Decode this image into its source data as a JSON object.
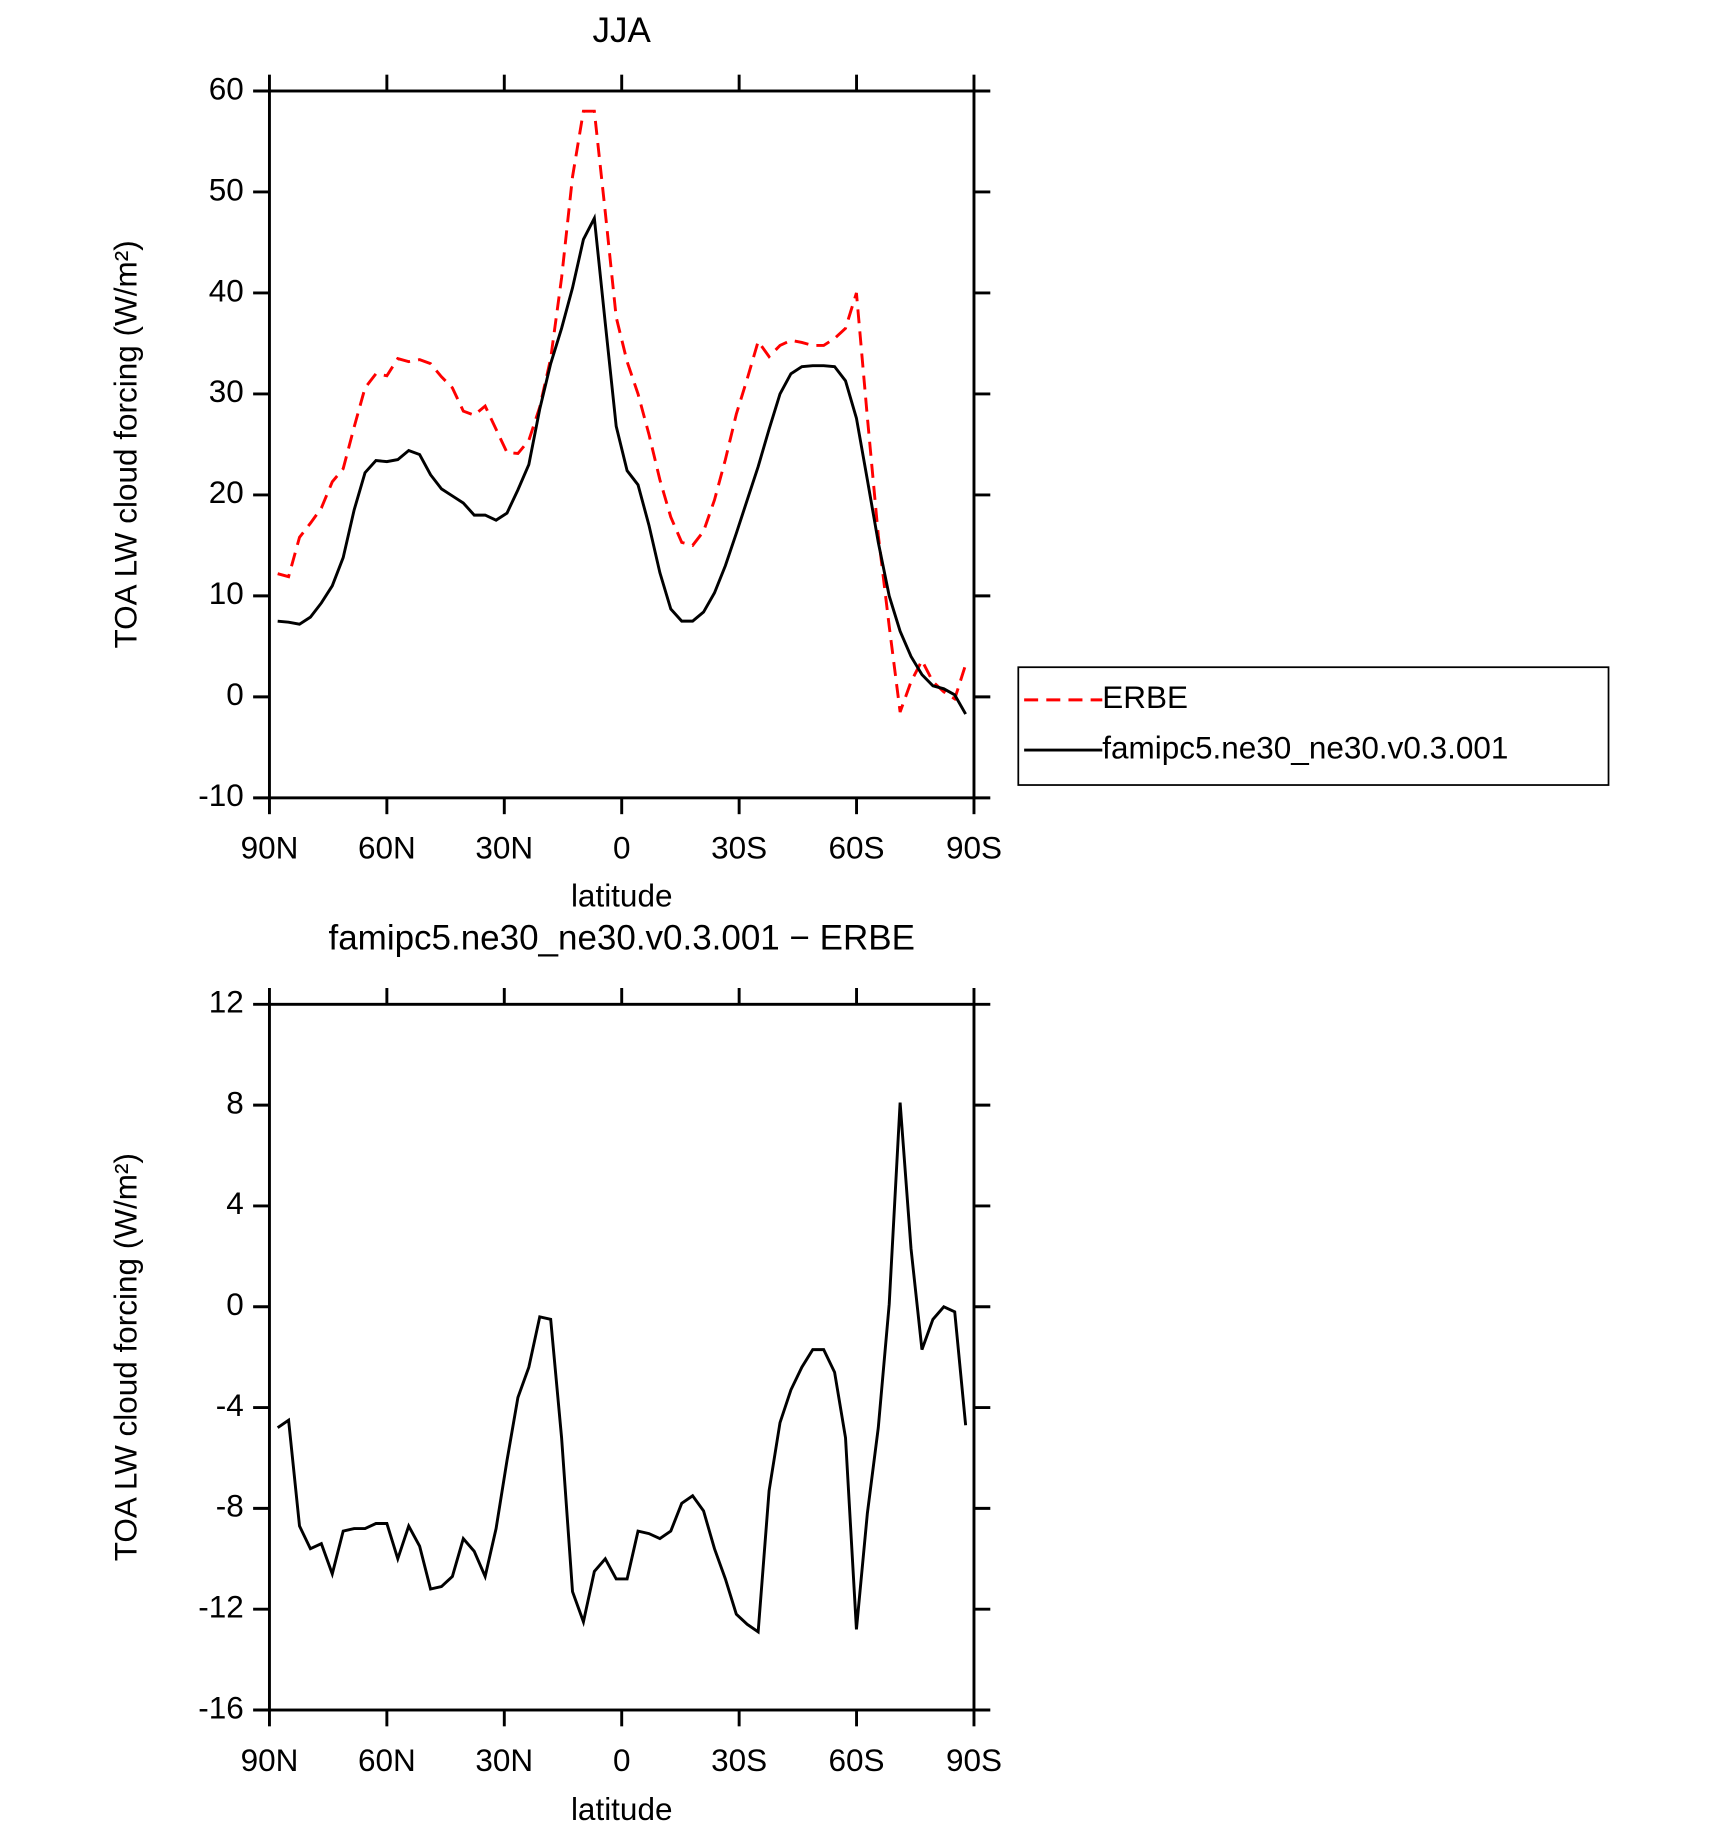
{
  "chart_data": [
    {
      "type": "line",
      "title": "JJA",
      "xlabel": "latitude",
      "ylabel": "TOA LW cloud forcing (W/m²)",
      "x": [
        87.9,
        85.11,
        82.32,
        79.53,
        76.74,
        73.95,
        71.16,
        68.37,
        65.58,
        62.79,
        60,
        57.21,
        54.42,
        51.63,
        48.84,
        46.05,
        43.26,
        40.47,
        37.68,
        34.89,
        32.1,
        29.31,
        26.52,
        23.73,
        20.94,
        18.15,
        15.36,
        12.57,
        9.78,
        6.99,
        4.2,
        1.41,
        -1.38,
        -4.17,
        -6.96,
        -9.75,
        -12.54,
        -15.33,
        -18.12,
        -20.91,
        -23.7,
        -26.49,
        -29.28,
        -32.07,
        -34.86,
        -37.65,
        -40.44,
        -43.23,
        -46.02,
        -48.81,
        -51.6,
        -54.39,
        -57.18,
        -59.97,
        -62.76,
        -65.55,
        -68.34,
        -71.13,
        -73.92,
        -76.71,
        -79.5,
        -82.29,
        -85.08,
        -87.87
      ],
      "series": [
        {
          "name": "ERBE",
          "color": "#ff0000",
          "dashed": true,
          "values": [
            12.2,
            11.9,
            15.8,
            17.2,
            18.7,
            21.3,
            22.6,
            26.7,
            30.6,
            32,
            31.8,
            33.5,
            33.2,
            33.4,
            33,
            31.7,
            30.6,
            28.3,
            27.9,
            28.8,
            26.5,
            24.2,
            24.1,
            25.4,
            28.7,
            33.5,
            41.5,
            51.5,
            58,
            58,
            48,
            37.6,
            33.2,
            30,
            26,
            21.5,
            17.8,
            15.3,
            15,
            16.4,
            19.5,
            23.5,
            28,
            31.5,
            35.2,
            33.7,
            34.8,
            35.3,
            35.1,
            34.8,
            34.8,
            35.5,
            36.5,
            40,
            27.7,
            16,
            7,
            -1.5,
            1.5,
            3.6,
            1.5,
            0.5,
            -0.2,
            3.2
          ]
        },
        {
          "name": "famipc5.ne30_ne30.v0.3.001",
          "color": "#000000",
          "dashed": false,
          "values": [
            7.5,
            7.4,
            7.2,
            7.9,
            9.3,
            11,
            13.8,
            18.5,
            22.2,
            23.4,
            23.3,
            23.5,
            24.4,
            24,
            22,
            20.6,
            19.9,
            19.2,
            18,
            18,
            17.5,
            18.2,
            20.5,
            23,
            28.5,
            33,
            36.5,
            40.5,
            45.3,
            47.4,
            37,
            26.8,
            22.4,
            21,
            17,
            12.3,
            8.7,
            7.5,
            7.5,
            8.4,
            10.3,
            13,
            16.2,
            19.5,
            22.8,
            26.5,
            30,
            32,
            32.7,
            32.8,
            32.8,
            32.7,
            31.3,
            27.6,
            21.5,
            15.3,
            10,
            6.5,
            4,
            2.2,
            1.1,
            0.8,
            0.2,
            -1.7
          ]
        }
      ],
      "xlim": [
        90,
        -90
      ],
      "xticks": [
        {
          "value": 90,
          "label": "90N"
        },
        {
          "value": 60,
          "label": "60N"
        },
        {
          "value": 30,
          "label": "30N"
        },
        0,
        {
          "value": -30,
          "label": "30S"
        },
        {
          "value": -60,
          "label": "60S"
        },
        {
          "value": -90,
          "label": "90S"
        }
      ],
      "ylim": [
        -10,
        60
      ],
      "yticks": [
        -10,
        0,
        10,
        20,
        30,
        40,
        50,
        60
      ],
      "legend": "right"
    },
    {
      "type": "line",
      "title": "famipc5.ne30_ne30.v0.3.001 − ERBE",
      "xlabel": "latitude",
      "ylabel": "TOA LW cloud forcing (W/m²)",
      "x": [
        87.9,
        85.11,
        82.32,
        79.53,
        76.74,
        73.95,
        71.16,
        68.37,
        65.58,
        62.79,
        60,
        57.21,
        54.42,
        51.63,
        48.84,
        46.05,
        43.26,
        40.47,
        37.68,
        34.89,
        32.1,
        29.31,
        26.52,
        23.73,
        20.94,
        18.15,
        15.36,
        12.57,
        9.78,
        6.99,
        4.2,
        1.41,
        -1.38,
        -4.17,
        -6.96,
        -9.75,
        -12.54,
        -15.33,
        -18.12,
        -20.91,
        -23.7,
        -26.49,
        -29.28,
        -32.07,
        -34.86,
        -37.65,
        -40.44,
        -43.23,
        -46.02,
        -48.81,
        -51.6,
        -54.39,
        -57.18,
        -59.97,
        -62.76,
        -65.55,
        -68.34,
        -71.13,
        -73.92,
        -76.71,
        -79.5,
        -82.29,
        -85.08,
        -87.87
      ],
      "series": [
        {
          "color": "#000000",
          "dashed": false,
          "values": [
            -4.8,
            -4.5,
            -8.7,
            -9.6,
            -9.4,
            -10.6,
            -8.9,
            -8.8,
            -8.8,
            -8.6,
            -8.6,
            -10,
            -8.7,
            -9.5,
            -11.2,
            -11.1,
            -10.7,
            -9.2,
            -9.7,
            -10.7,
            -8.8,
            -6.1,
            -3.6,
            -2.4,
            -0.4,
            -0.5,
            -5.2,
            -11.3,
            -12.5,
            -10.5,
            -10,
            -10.8,
            -10.8,
            -8.9,
            -9,
            -9.2,
            -8.9,
            -7.8,
            -7.5,
            -8.1,
            -9.6,
            -10.8,
            -12.2,
            -12.6,
            -12.9,
            -7.3,
            -4.6,
            -3.3,
            -2.4,
            -1.7,
            -1.7,
            -2.6,
            -5.2,
            -12.8,
            -8.2,
            -4.8,
            0.1,
            8.1,
            2.3,
            -1.7,
            -0.5,
            0,
            -0.2,
            -4.7
          ]
        }
      ],
      "xlim": [
        90,
        -90
      ],
      "xticks": [
        {
          "value": 90,
          "label": "90N"
        },
        {
          "value": 60,
          "label": "60N"
        },
        {
          "value": 30,
          "label": "30N"
        },
        0,
        {
          "value": -30,
          "label": "30S"
        },
        {
          "value": -60,
          "label": "60S"
        },
        {
          "value": -90,
          "label": "90S"
        }
      ],
      "ylim": [
        -16,
        12
      ],
      "yticks": [
        -16,
        -12,
        -8,
        -4,
        0,
        4,
        8,
        12
      ]
    }
  ]
}
